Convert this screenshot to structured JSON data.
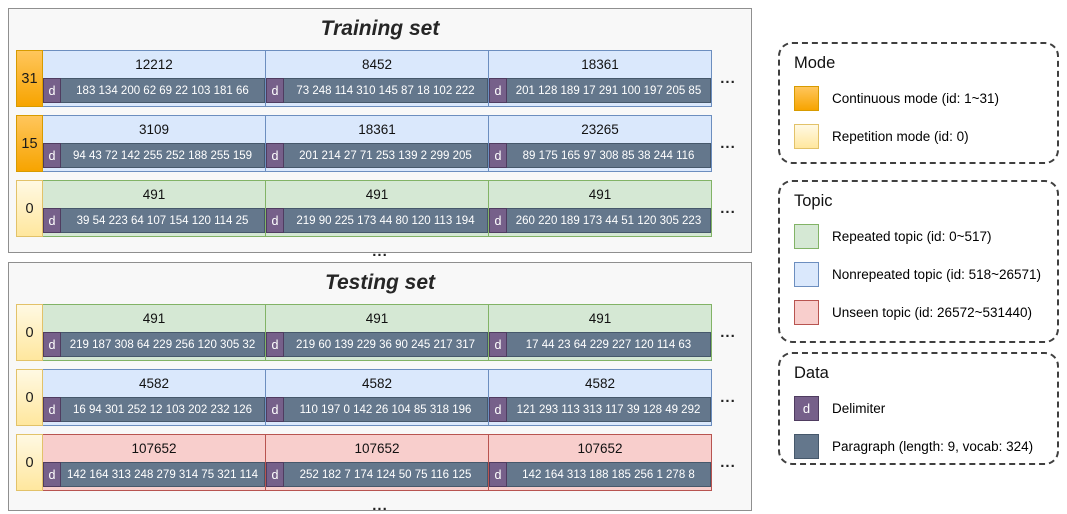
{
  "glyphs": {
    "delimiter": "d",
    "ellipsis": "..."
  },
  "colors": {
    "continuous_mode": "#f7a400",
    "repetition_mode": "#ffe79e",
    "repeated_topic": "#d5e8d4",
    "nonrepeated_topic": "#dae8fc",
    "unseen_topic": "#f8cecc",
    "delimiter": "#76608a",
    "paragraph": "#64778c"
  },
  "panels": [
    {
      "title": "Training set",
      "rows": [
        {
          "mode_id": "31",
          "mode_type": "continuous",
          "topic_type": "nonrepeated",
          "segments": [
            {
              "topic_id": "12212",
              "tokens": "183 134 200 62 69 22 103 181 66"
            },
            {
              "topic_id": "8452",
              "tokens": "73 248 114 310 145 87 18 102 222"
            },
            {
              "topic_id": "18361",
              "tokens": "201 128 189 17 291 100 197 205 85"
            }
          ]
        },
        {
          "mode_id": "15",
          "mode_type": "continuous",
          "topic_type": "nonrepeated",
          "segments": [
            {
              "topic_id": "3109",
              "tokens": "94 43 72 142 255 252 188 255 159"
            },
            {
              "topic_id": "18361",
              "tokens": "201 214 27 71 253 139 2 299 205"
            },
            {
              "topic_id": "23265",
              "tokens": "89 175 165 97 308 85 38 244 116"
            }
          ]
        },
        {
          "mode_id": "0",
          "mode_type": "repetition",
          "topic_type": "repeated",
          "segments": [
            {
              "topic_id": "491",
              "tokens": "39 54 223 64 107 154 120 114 25"
            },
            {
              "topic_id": "491",
              "tokens": "219 90 225 173 44 80 120 113 194"
            },
            {
              "topic_id": "491",
              "tokens": "260 220 189 173 44 51 120 305 223"
            }
          ]
        }
      ]
    },
    {
      "title": "Testing set",
      "rows": [
        {
          "mode_id": "0",
          "mode_type": "repetition",
          "topic_type": "repeated",
          "segments": [
            {
              "topic_id": "491",
              "tokens": "219 187 308 64 229 256 120 305 32"
            },
            {
              "topic_id": "491",
              "tokens": "219 60 139 229 36 90 245 217 317"
            },
            {
              "topic_id": "491",
              "tokens": "17 44 23 64 229 227 120 114 63"
            }
          ]
        },
        {
          "mode_id": "0",
          "mode_type": "repetition",
          "topic_type": "nonrepeated",
          "segments": [
            {
              "topic_id": "4582",
              "tokens": "16 94 301 252 12 103 202 232 126"
            },
            {
              "topic_id": "4582",
              "tokens": "110 197 0 142 26 104 85 318 196"
            },
            {
              "topic_id": "4582",
              "tokens": "121 293 113 313 117 39 128 49 292"
            }
          ]
        },
        {
          "mode_id": "0",
          "mode_type": "repetition",
          "topic_type": "unseen",
          "segments": [
            {
              "topic_id": "107652",
              "tokens": "142 164 313 248 279 314 75 321 114"
            },
            {
              "topic_id": "107652",
              "tokens": "252 182 7 174 124 50 75 116 125"
            },
            {
              "topic_id": "107652",
              "tokens": "142 164 313 188 185 256 1 278 8"
            }
          ]
        }
      ]
    }
  ],
  "legend": {
    "mode": {
      "title": "Mode",
      "items": [
        {
          "swatch": "continuous",
          "label": "Continuous mode (id: 1~31)"
        },
        {
          "swatch": "repetition",
          "label": "Repetition mode (id: 0)"
        }
      ]
    },
    "topic": {
      "title": "Topic",
      "items": [
        {
          "swatch": "repeated",
          "label": "Repeated topic (id: 0~517)"
        },
        {
          "swatch": "nonrepeated",
          "label": "Nonrepeated topic (id: 518~26571)"
        },
        {
          "swatch": "unseen",
          "label": "Unseen topic (id: 26572~531440)"
        }
      ]
    },
    "data": {
      "title": "Data",
      "items": [
        {
          "swatch": "delimiter",
          "swatch_text": "d",
          "label": "Delimiter"
        },
        {
          "swatch": "paragraph",
          "label": "Paragraph (length: 9, vocab: 324)"
        }
      ]
    }
  }
}
